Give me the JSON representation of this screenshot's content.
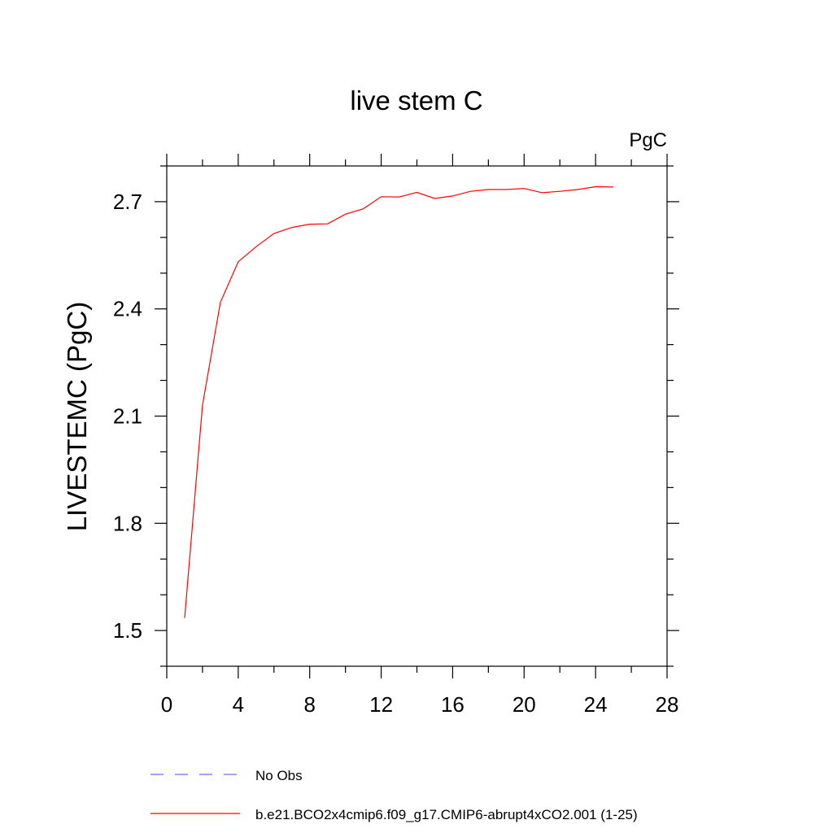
{
  "chart_data": {
    "type": "line",
    "title": "live stem C",
    "units_label": "PgC",
    "ylabel": "LIVESTEMC  (PgC)",
    "xlabel": "",
    "xlim": [
      0,
      28
    ],
    "ylim": [
      1.4,
      2.8
    ],
    "x_ticks": [
      0,
      4,
      8,
      12,
      16,
      20,
      24,
      28
    ],
    "y_ticks": [
      1.5,
      1.8,
      2.1,
      2.4,
      2.7
    ],
    "y_tick_labels": [
      "1.5",
      "1.8",
      "2.1",
      "2.4",
      "2.7"
    ],
    "grid": false,
    "series": [
      {
        "name": "b.e21.BCO2x4cmip6.f09_g17.CMIP6-abrupt4xCO2.001 (1-25)",
        "color": "#ff0000",
        "x": [
          1,
          2,
          3,
          4,
          5,
          6,
          7,
          8,
          9,
          10,
          11,
          12,
          13,
          14,
          15,
          16,
          17,
          18,
          19,
          20,
          21,
          22,
          23,
          24,
          25
        ],
        "values": [
          1.535,
          2.13,
          2.418,
          2.532,
          2.574,
          2.611,
          2.628,
          2.637,
          2.638,
          2.665,
          2.68,
          2.714,
          2.713,
          2.726,
          2.709,
          2.716,
          2.729,
          2.734,
          2.734,
          2.737,
          2.725,
          2.729,
          2.734,
          2.742,
          2.741
        ]
      }
    ],
    "legend": {
      "placement": "bottom-left",
      "entries": [
        {
          "label": "No Obs",
          "color": "#6a6aff",
          "style": "dashed"
        },
        {
          "label": "b.e21.BCO2x4cmip6.f09_g17.CMIP6-abrupt4xCO2.001 (1-25)",
          "color": "#ff0000",
          "style": "solid"
        }
      ]
    }
  }
}
